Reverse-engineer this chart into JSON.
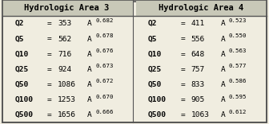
{
  "title_left": "Hydrologic Area 3",
  "title_right": "Hydrologic Area 4",
  "rows_left": [
    {
      "q": "Q2",
      "coeff": "353",
      "exp": "0.682"
    },
    {
      "q": "Q5",
      "coeff": "562",
      "exp": "0.678"
    },
    {
      "q": "Q10",
      "coeff": "716",
      "exp": "0.676"
    },
    {
      "q": "Q25",
      "coeff": "924",
      "exp": "0.673"
    },
    {
      "q": "Q50",
      "coeff": "1086",
      "exp": "0.672"
    },
    {
      "q": "Q100",
      "coeff": "1253",
      "exp": "0.670"
    },
    {
      "q": "Q500",
      "coeff": "1656",
      "exp": "0.666"
    }
  ],
  "rows_right": [
    {
      "q": "Q2",
      "coeff": "411",
      "exp": "0.523"
    },
    {
      "q": "Q5",
      "coeff": "556",
      "exp": "0.550"
    },
    {
      "q": "Q10",
      "coeff": "648",
      "exp": "0.563"
    },
    {
      "q": "Q25",
      "coeff": "757",
      "exp": "0.577"
    },
    {
      "q": "Q50",
      "coeff": "833",
      "exp": "0.586"
    },
    {
      "q": "Q100",
      "coeff": "905",
      "exp": "0.595"
    },
    {
      "q": "Q500",
      "coeff": "1063",
      "exp": "0.612"
    }
  ],
  "bg_color": "#f0ede0",
  "header_bg": "#c8c8b8",
  "border_color": "#555555",
  "text_color": "#000000",
  "title_fontsize": 7.5,
  "body_fontsize": 6.8
}
